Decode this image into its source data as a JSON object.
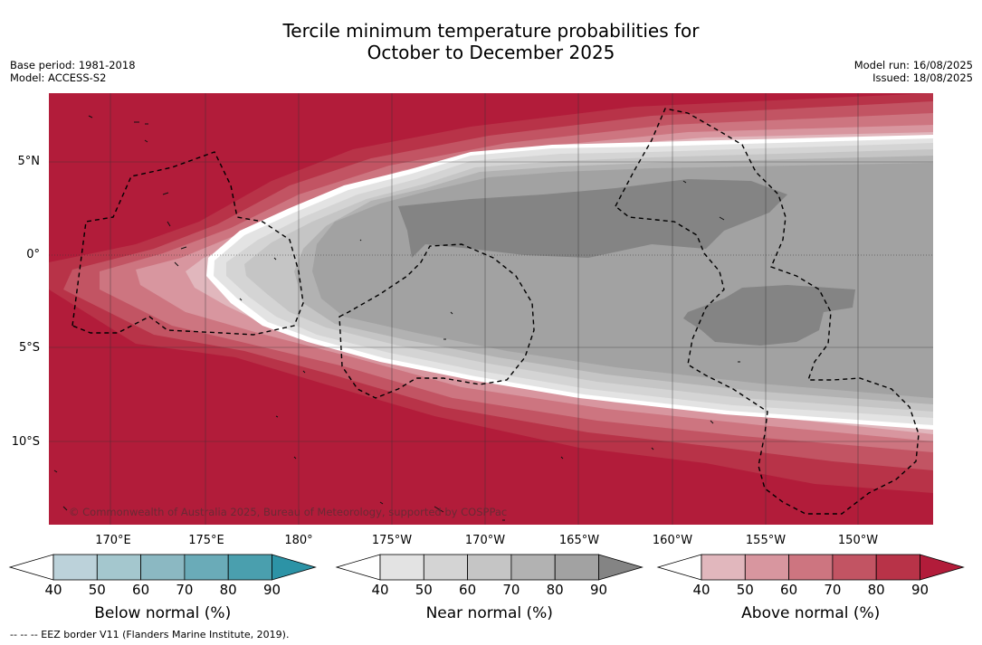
{
  "title_line1": "Tercile minimum temperature probabilities for",
  "title_line2": "October to December 2025",
  "meta_left": {
    "base_period": "Base period: 1981-2018",
    "model": "Model: ACCESS-S2"
  },
  "meta_right": {
    "model_run": "Model run: 16/08/2025",
    "issued": "Issued: 18/08/2025"
  },
  "lat_labels": [
    "5°N",
    "0°",
    "5°S",
    "10°S"
  ],
  "lon_labels": [
    "170°E",
    "175°E",
    "180°",
    "175°W",
    "170°W",
    "165°W",
    "160°W",
    "155°W",
    "150°W"
  ],
  "copyright": "© Commonwealth of Australia 2025, Bureau of Meteorology, supported by COSPPac",
  "colorbars": [
    {
      "label": "Below normal (%)",
      "ticks": [
        "40",
        "50",
        "60",
        "70",
        "80",
        "90"
      ],
      "colors": [
        "#ffffff",
        "#bcd2da",
        "#a4c7ce",
        "#8bb8c2",
        "#6aabb8",
        "#4a9fae",
        "#2c93a6"
      ]
    },
    {
      "label": "Near normal (%)",
      "ticks": [
        "40",
        "50",
        "60",
        "70",
        "80",
        "90"
      ],
      "colors": [
        "#ffffff",
        "#e3e3e3",
        "#d4d4d4",
        "#c5c5c5",
        "#b2b2b2",
        "#a2a2a2",
        "#848484"
      ]
    },
    {
      "label": "Above normal (%)",
      "ticks": [
        "40",
        "50",
        "60",
        "70",
        "80",
        "90"
      ],
      "colors": [
        "#ffffff",
        "#e1b7bd",
        "#d8969f",
        "#cd7580",
        "#c25463",
        "#b83348",
        "#b21c3a"
      ]
    }
  ],
  "footer": "--  --  -- EEZ border V11 (Flanders Marine Institute, 2019).",
  "colors": {
    "above90": "#b21c3a",
    "near80": "#a2a2a2",
    "near90": "#848484",
    "near60": "#c5c5c5"
  }
}
